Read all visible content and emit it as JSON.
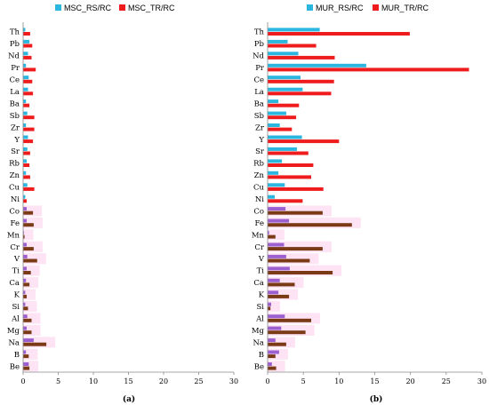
{
  "colors": {
    "rs": "#2ab6df",
    "tr": "#ee1c1c",
    "rs_alt": "#9b5fd0",
    "tr_alt": "#7b3a16",
    "band": "#fde3f3"
  },
  "chart_data": [
    {
      "type": "bar",
      "orientation": "horizontal",
      "panel_label": "(a)",
      "categories": [
        "Th",
        "Pb",
        "Nd",
        "Pr",
        "Ce",
        "La",
        "Ba",
        "Sb",
        "Zr",
        "Y",
        "Sr",
        "Rb",
        "Zn",
        "Cu",
        "Ni",
        "Co",
        "Fe",
        "Mn",
        "Cr",
        "V",
        "Ti",
        "Ca",
        "K",
        "Si",
        "Al",
        "Mg",
        "Na",
        "B",
        "Be"
      ],
      "highlighted_categories": [
        "Co",
        "Fe",
        "Mn",
        "Cr",
        "V",
        "Ti",
        "Ca",
        "K",
        "Si",
        "Al",
        "Mg",
        "Na",
        "B",
        "Be"
      ],
      "xlim": [
        0,
        30
      ],
      "xticks": [
        0,
        5,
        10,
        15,
        20,
        25,
        30
      ],
      "series": [
        {
          "name": "MSC_RS/RC",
          "values": [
            0.3,
            0.9,
            0.7,
            0.4,
            0.8,
            0.7,
            0.4,
            0.6,
            0.4,
            0.7,
            0.6,
            0.5,
            0.4,
            0.6,
            0.3,
            0.5,
            0.5,
            0.1,
            0.5,
            0.6,
            0.5,
            0.4,
            0.3,
            0.3,
            0.6,
            0.5,
            1.5,
            0.4,
            0.8
          ]
        },
        {
          "name": "MSC_TR/RC",
          "values": [
            1.0,
            1.3,
            1.2,
            1.8,
            1.3,
            1.4,
            0.9,
            1.6,
            1.6,
            1.4,
            1.0,
            0.9,
            1.0,
            1.6,
            0.5,
            1.4,
            1.5,
            0.2,
            1.5,
            2.0,
            1.1,
            0.9,
            0.5,
            0.7,
            1.2,
            1.2,
            3.3,
            0.8,
            0.9
          ]
        }
      ]
    },
    {
      "type": "bar",
      "orientation": "horizontal",
      "panel_label": "(b)",
      "categories": [
        "Th",
        "Pb",
        "Nd",
        "Pr",
        "Ce",
        "La",
        "Ba",
        "Sb",
        "Zr",
        "Y",
        "Sr",
        "Rb",
        "Zn",
        "Cu",
        "Ni",
        "Co",
        "Fe",
        "Mn",
        "Cr",
        "V",
        "Ti",
        "Ca",
        "K",
        "Si",
        "Al",
        "Mg",
        "Na",
        "B",
        "Be"
      ],
      "highlighted_categories": [
        "Co",
        "Fe",
        "Mn",
        "Cr",
        "V",
        "Ti",
        "Ca",
        "K",
        "Si",
        "Al",
        "Mg",
        "Na",
        "B",
        "Be"
      ],
      "xlim": [
        0,
        30
      ],
      "xticks": [
        0,
        5,
        10,
        15,
        20,
        25,
        30
      ],
      "series": [
        {
          "name": "MUR_RS/RC",
          "values": [
            7.3,
            2.8,
            4.3,
            13.8,
            4.6,
            4.9,
            1.5,
            2.6,
            1.7,
            4.8,
            4.1,
            2.0,
            1.5,
            2.4,
            1.0,
            2.5,
            3.0,
            0.2,
            2.3,
            2.6,
            3.1,
            1.7,
            1.5,
            0.5,
            2.4,
            1.9,
            1.1,
            1.6,
            0.6
          ]
        },
        {
          "name": "MUR_TR/RC",
          "values": [
            19.9,
            6.8,
            9.4,
            28.2,
            9.3,
            8.9,
            4.4,
            4.0,
            3.4,
            10.0,
            5.7,
            6.4,
            6.1,
            7.8,
            4.9,
            7.7,
            11.8,
            1.1,
            7.7,
            5.9,
            9.1,
            3.8,
            3.0,
            0.4,
            6.1,
            5.3,
            2.6,
            1.1,
            1.2
          ]
        }
      ]
    }
  ]
}
